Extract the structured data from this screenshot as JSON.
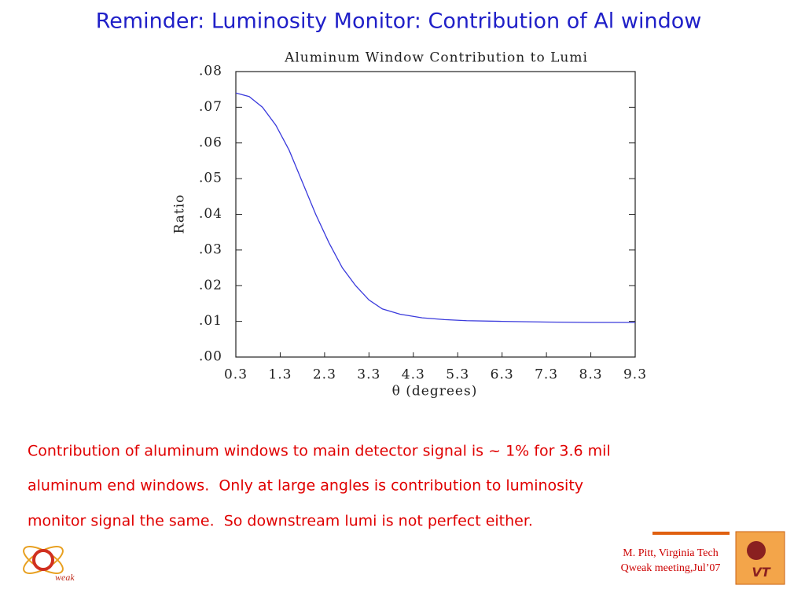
{
  "slide": {
    "title": "Reminder: Luminosity Monitor: Contribution of Al window",
    "body": [
      "Contribution of aluminum windows to main detector signal is ~ 1% for 3.6 mil",
      "aluminum end windows.  Only at large angles is contribution to luminosity",
      "monitor signal the same.  So downstream lumi is not perfect either."
    ],
    "footer": [
      "M. Pitt, Virginia Tech",
      "Qweak meeting,Jul’07"
    ],
    "logo_left": "weak",
    "logo_right": "VT"
  },
  "chart_data": {
    "type": "line",
    "title": "Aluminum Window Contribution to Lumi",
    "x_label": "θ (degrees)",
    "y_label": "Ratio",
    "color": "#3a3adc",
    "x": [
      0.3,
      0.6,
      0.9,
      1.2,
      1.5,
      1.8,
      2.1,
      2.4,
      2.7,
      3.0,
      3.3,
      3.6,
      4.0,
      4.5,
      5.0,
      5.5,
      6.3,
      7.3,
      8.3,
      9.3
    ],
    "values": [
      0.074,
      0.073,
      0.07,
      0.065,
      0.058,
      0.049,
      0.04,
      0.032,
      0.025,
      0.02,
      0.016,
      0.0135,
      0.012,
      0.011,
      0.0105,
      0.0102,
      0.01,
      0.0098,
      0.0097,
      0.0097
    ],
    "xlim": [
      0.3,
      9.3
    ],
    "xticks": [
      0.3,
      1.3,
      2.3,
      3.3,
      4.3,
      5.3,
      6.3,
      7.3,
      8.3,
      9.3
    ],
    "ylim": [
      0,
      0.08
    ],
    "yticks": [
      {
        "value": 0,
        "label": ".00"
      },
      {
        "value": 0.01,
        "label": ".01"
      },
      {
        "value": 0.02,
        "label": ".02"
      },
      {
        "value": 0.03,
        "label": ".03"
      },
      {
        "value": 0.04,
        "label": ".04"
      },
      {
        "value": 0.05,
        "label": ".05"
      },
      {
        "value": 0.06,
        "label": ".06"
      },
      {
        "value": 0.07,
        "label": ".07"
      },
      {
        "value": 0.08,
        "label": ".08"
      }
    ],
    "grid": false
  }
}
